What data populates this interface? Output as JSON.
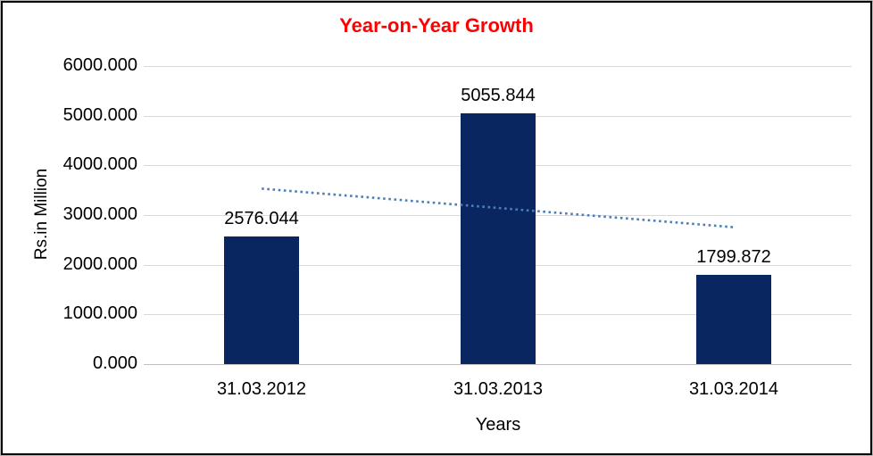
{
  "window": {
    "background": "#FFFFFF",
    "outer_border": "#B9B9B9",
    "inner_border": "#000000"
  },
  "chart_data": {
    "type": "bar",
    "title": "Year-on-Year Growth",
    "xlabel": "Years",
    "ylabel": "Rs.in Million",
    "categories": [
      "31.03.2012",
      "31.03.2013",
      "31.03.2014"
    ],
    "values": [
      2576.044,
      5055.844,
      1799.872
    ],
    "data_labels": [
      "2576.044",
      "5055.844",
      "1799.872"
    ],
    "ylim": [
      0,
      6000
    ],
    "ytick_step": 1000,
    "ytick_values": [
      0,
      1000,
      2000,
      3000,
      4000,
      5000,
      6000
    ],
    "ytick_labels": [
      "0.000",
      "1000.000",
      "2000.000",
      "3000.000",
      "4000.000",
      "5000.000",
      "6000.000"
    ],
    "grid": true,
    "legend": "none",
    "trendline": {
      "type": "linear",
      "style": "dotted",
      "start_value": 3532.0,
      "end_value": 2755.8
    },
    "colors": {
      "title": "#FF0000",
      "bar": "#0A2661",
      "trendline": "#4A7EBB",
      "gridline": "#D9D9D9",
      "baseline": "#C0C0C0",
      "text": "#000000"
    }
  }
}
